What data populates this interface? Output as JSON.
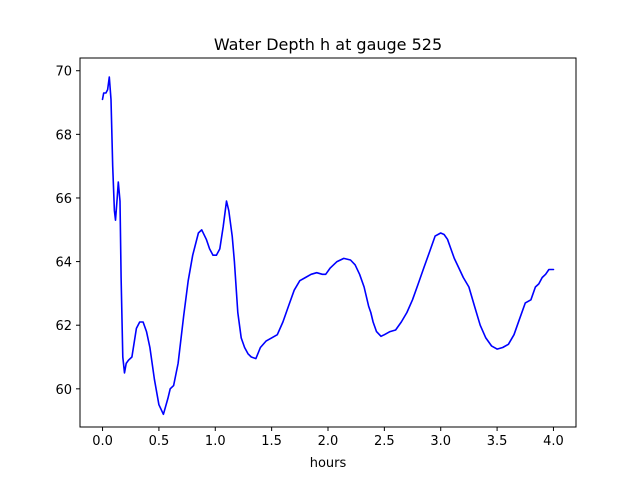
{
  "chart_data": {
    "type": "line",
    "title": "Water Depth h at gauge 525",
    "xlabel": "hours",
    "ylabel": "",
    "xlim": [
      -0.2,
      4.2
    ],
    "ylim": [
      58.8,
      70.4
    ],
    "xticks": [
      0.0,
      0.5,
      1.0,
      1.5,
      2.0,
      2.5,
      3.0,
      3.5,
      4.0
    ],
    "xtick_labels": [
      "0.0",
      "0.5",
      "1.0",
      "1.5",
      "2.0",
      "2.5",
      "3.0",
      "3.5",
      "4.0"
    ],
    "yticks": [
      60,
      62,
      64,
      66,
      68,
      70
    ],
    "ytick_labels": [
      "60",
      "62",
      "64",
      "66",
      "68",
      "70"
    ],
    "grid": false,
    "series": [
      {
        "color": "#0000ff",
        "x": [
          0.0,
          0.01,
          0.03,
          0.045,
          0.06,
          0.075,
          0.09,
          0.105,
          0.115,
          0.13,
          0.14,
          0.155,
          0.165,
          0.18,
          0.195,
          0.21,
          0.23,
          0.26,
          0.3,
          0.33,
          0.36,
          0.39,
          0.42,
          0.46,
          0.5,
          0.54,
          0.58,
          0.6,
          0.63,
          0.67,
          0.72,
          0.76,
          0.8,
          0.85,
          0.88,
          0.92,
          0.95,
          0.98,
          1.01,
          1.04,
          1.07,
          1.1,
          1.12,
          1.15,
          1.17,
          1.2,
          1.23,
          1.26,
          1.29,
          1.32,
          1.36,
          1.4,
          1.45,
          1.5,
          1.55,
          1.6,
          1.65,
          1.7,
          1.75,
          1.8,
          1.85,
          1.9,
          1.95,
          1.98,
          2.02,
          2.08,
          2.14,
          2.2,
          2.24,
          2.28,
          2.32,
          2.36,
          2.38,
          2.4,
          2.43,
          2.47,
          2.5,
          2.55,
          2.6,
          2.65,
          2.7,
          2.75,
          2.8,
          2.85,
          2.9,
          2.95,
          3.0,
          3.03,
          3.06,
          3.09,
          3.12,
          3.16,
          3.2,
          3.25,
          3.3,
          3.35,
          3.4,
          3.45,
          3.5,
          3.55,
          3.6,
          3.65,
          3.7,
          3.75,
          3.8,
          3.84,
          3.87,
          3.9,
          3.93,
          3.96,
          4.0
        ],
        "values": [
          69.1,
          69.3,
          69.3,
          69.4,
          69.8,
          69.1,
          67.0,
          65.6,
          65.3,
          66.0,
          66.5,
          65.9,
          63.5,
          61.0,
          60.5,
          60.8,
          60.9,
          61.0,
          61.9,
          62.1,
          62.1,
          61.8,
          61.3,
          60.3,
          59.5,
          59.2,
          59.7,
          60.0,
          60.1,
          60.8,
          62.3,
          63.4,
          64.2,
          64.9,
          65.0,
          64.7,
          64.4,
          64.2,
          64.2,
          64.4,
          65.1,
          65.9,
          65.6,
          64.8,
          64.0,
          62.4,
          61.6,
          61.3,
          61.1,
          61.0,
          60.95,
          61.3,
          61.5,
          61.6,
          61.7,
          62.1,
          62.6,
          63.1,
          63.4,
          63.5,
          63.6,
          63.65,
          63.6,
          63.6,
          63.8,
          64.0,
          64.1,
          64.05,
          63.9,
          63.6,
          63.2,
          62.6,
          62.4,
          62.1,
          61.8,
          61.65,
          61.7,
          61.8,
          61.85,
          62.1,
          62.4,
          62.8,
          63.3,
          63.8,
          64.3,
          64.8,
          64.9,
          64.85,
          64.7,
          64.4,
          64.1,
          63.8,
          63.5,
          63.2,
          62.6,
          62.0,
          61.6,
          61.35,
          61.25,
          61.3,
          61.4,
          61.7,
          62.2,
          62.7,
          62.8,
          63.2,
          63.3,
          63.5,
          63.6,
          63.75,
          63.75
        ]
      }
    ]
  }
}
